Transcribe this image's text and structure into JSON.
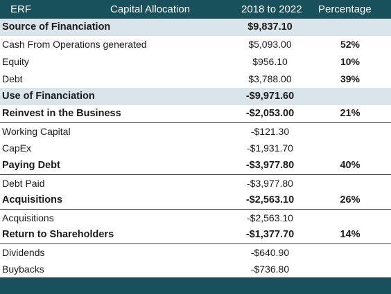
{
  "header": {
    "company": "ERF",
    "title": "Capital Allocation",
    "period": "2018 to 2022",
    "percentage": "Percentage"
  },
  "rows": [
    {
      "label": "Source of Financiation",
      "value": "$9,837.10",
      "pct": ""
    },
    {
      "label": "Cash From Operations generated",
      "value": "$5,093.00",
      "pct": "52%"
    },
    {
      "label": "Equity",
      "value": "$956.10",
      "pct": "10%"
    },
    {
      "label": "Debt",
      "value": "$3,788.00",
      "pct": "39%"
    },
    {
      "label": "Use of Financiation",
      "value": "-$9,971.60",
      "pct": ""
    },
    {
      "label": "Reinvest in the Business",
      "value": "-$2,053.00",
      "pct": "21%"
    },
    {
      "label": "Working Capital",
      "value": "-$121.30",
      "pct": ""
    },
    {
      "label": "CapEx",
      "value": "-$1,931.70",
      "pct": ""
    },
    {
      "label": "Paying Debt",
      "value": "-$3,977.80",
      "pct": "40%"
    },
    {
      "label": "Debt Paid",
      "value": "-$3,977.80",
      "pct": ""
    },
    {
      "label": "Acquisitions",
      "value": "-$2,563.10",
      "pct": "26%"
    },
    {
      "label": "Acquisitions",
      "value": "-$2,563.10",
      "pct": ""
    },
    {
      "label": "Return to Shareholders",
      "value": "-$1,377.70",
      "pct": "14%"
    },
    {
      "label": "Dividends",
      "value": "-$640.90",
      "pct": ""
    },
    {
      "label": "Buybacks",
      "value": "-$736.80",
      "pct": ""
    }
  ],
  "colors": {
    "header_bg": "#18505c",
    "section_bg": "#d9e5ea"
  }
}
